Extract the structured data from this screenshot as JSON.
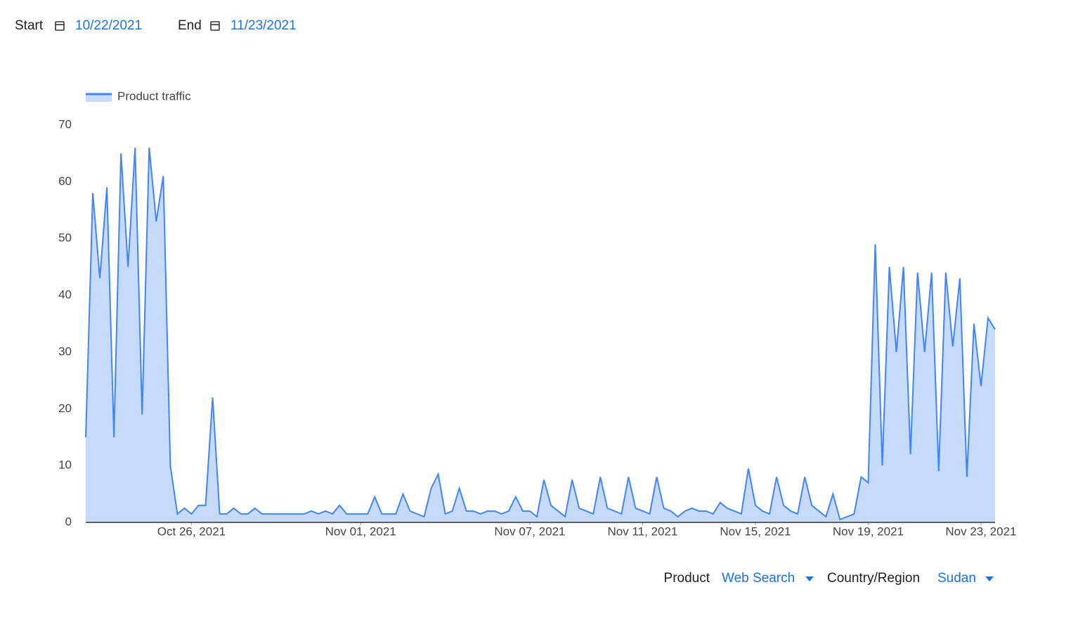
{
  "header": {
    "start_label": "Start",
    "start_date": "10/22/2021",
    "end_label": "End",
    "end_date": "11/23/2021"
  },
  "chart_data": {
    "type": "area",
    "color": "#4285f4",
    "fill": "#c6dafc",
    "series": [
      {
        "name": "Product traffic",
        "values": [
          15,
          58,
          43,
          59,
          15,
          65,
          45,
          66,
          19,
          66,
          53,
          61,
          10,
          1.5,
          2.5,
          1.5,
          3,
          3,
          22,
          1.5,
          1.5,
          2.5,
          1.5,
          1.5,
          2.5,
          1.5,
          1.5,
          1.5,
          1.5,
          1.5,
          1.5,
          1.5,
          2,
          1.5,
          2,
          1.5,
          3,
          1.5,
          1.5,
          1.5,
          1.5,
          4.5,
          1.5,
          1.5,
          1.5,
          5,
          2,
          1.5,
          1,
          6,
          8.5,
          1.5,
          2,
          6,
          2,
          2,
          1.5,
          2,
          2,
          1.5,
          2,
          4.5,
          2,
          2,
          1,
          7.5,
          3,
          2,
          1,
          7.5,
          2.5,
          2,
          1.5,
          8,
          2.5,
          2,
          1.5,
          8,
          2.5,
          2,
          1.5,
          8,
          2.5,
          2,
          1,
          2,
          2.5,
          2,
          2,
          1.5,
          3.5,
          2.5,
          2,
          1.5,
          9.5,
          3,
          2,
          1.5,
          8,
          3,
          2,
          1.5,
          8,
          3,
          2,
          1,
          5,
          0.5,
          1,
          1.5,
          8,
          7,
          49,
          10,
          45,
          30,
          45,
          12,
          44,
          30,
          44,
          9,
          44,
          31,
          43,
          8,
          35,
          24,
          36,
          34
        ]
      }
    ],
    "x": [
      "2021-10-22T06:00",
      "2021-10-22T12:00",
      "2021-10-22T18:00",
      "2021-10-23T00:00",
      "2021-10-23T06:00",
      "2021-10-23T12:00",
      "2021-10-23T18:00",
      "2021-10-24T00:00",
      "2021-10-24T06:00",
      "2021-10-24T12:00",
      "2021-10-24T18:00",
      "2021-10-25T00:00",
      "2021-10-25T06:00",
      "2021-10-25T12:00",
      "2021-10-25T18:00",
      "2021-10-26T00:00",
      "2021-10-26T06:00",
      "2021-10-26T12:00",
      "2021-10-26T18:00",
      "2021-10-27T00:00",
      "2021-10-27T06:00",
      "2021-10-27T12:00",
      "2021-10-27T18:00",
      "2021-10-28T00:00",
      "2021-10-28T06:00",
      "2021-10-28T12:00",
      "2021-10-28T18:00",
      "2021-10-29T00:00",
      "2021-10-29T06:00",
      "2021-10-29T12:00",
      "2021-10-29T18:00",
      "2021-10-30T00:00",
      "2021-10-30T06:00",
      "2021-10-30T12:00",
      "2021-10-30T18:00",
      "2021-10-31T00:00",
      "2021-10-31T06:00",
      "2021-10-31T12:00",
      "2021-10-31T18:00",
      "2021-11-01T00:00",
      "2021-11-01T06:00",
      "2021-11-01T12:00",
      "2021-11-01T18:00",
      "2021-11-02T00:00",
      "2021-11-02T06:00",
      "2021-11-02T12:00",
      "2021-11-02T18:00",
      "2021-11-03T00:00",
      "2021-11-03T06:00",
      "2021-11-03T12:00",
      "2021-11-03T18:00",
      "2021-11-04T00:00",
      "2021-11-04T06:00",
      "2021-11-04T12:00",
      "2021-11-04T18:00",
      "2021-11-05T00:00",
      "2021-11-05T06:00",
      "2021-11-05T12:00",
      "2021-11-05T18:00",
      "2021-11-06T00:00",
      "2021-11-06T06:00",
      "2021-11-06T12:00",
      "2021-11-06T18:00",
      "2021-11-07T00:00",
      "2021-11-07T06:00",
      "2021-11-07T12:00",
      "2021-11-07T18:00",
      "2021-11-08T00:00",
      "2021-11-08T06:00",
      "2021-11-08T12:00",
      "2021-11-08T18:00",
      "2021-11-09T00:00",
      "2021-11-09T06:00",
      "2021-11-09T12:00",
      "2021-11-09T18:00",
      "2021-11-10T00:00",
      "2021-11-10T06:00",
      "2021-11-10T12:00",
      "2021-11-10T18:00",
      "2021-11-11T00:00",
      "2021-11-11T06:00",
      "2021-11-11T12:00",
      "2021-11-11T18:00",
      "2021-11-12T00:00",
      "2021-11-12T06:00",
      "2021-11-12T12:00",
      "2021-11-12T18:00",
      "2021-11-13T00:00",
      "2021-11-13T06:00",
      "2021-11-13T12:00",
      "2021-11-13T18:00",
      "2021-11-14T00:00",
      "2021-11-14T06:00",
      "2021-11-14T12:00",
      "2021-11-14T18:00",
      "2021-11-15T00:00",
      "2021-11-15T06:00",
      "2021-11-15T12:00",
      "2021-11-15T18:00",
      "2021-11-16T00:00",
      "2021-11-16T06:00",
      "2021-11-16T12:00",
      "2021-11-16T18:00",
      "2021-11-17T00:00",
      "2021-11-17T06:00",
      "2021-11-17T12:00",
      "2021-11-17T18:00",
      "2021-11-18T00:00",
      "2021-11-18T06:00",
      "2021-11-18T12:00",
      "2021-11-18T18:00",
      "2021-11-19T00:00",
      "2021-11-19T06:00",
      "2021-11-19T12:00",
      "2021-11-19T18:00",
      "2021-11-20T00:00",
      "2021-11-20T06:00",
      "2021-11-20T12:00",
      "2021-11-20T18:00",
      "2021-11-21T00:00",
      "2021-11-21T06:00",
      "2021-11-21T12:00",
      "2021-11-21T18:00",
      "2021-11-22T00:00",
      "2021-11-22T06:00",
      "2021-11-22T12:00",
      "2021-11-22T18:00",
      "2021-11-23T00:00",
      "2021-11-23T06:00",
      "2021-11-23T12:00"
    ],
    "xlim": [
      "2021-10-22T06:00",
      "2021-11-23T12:00"
    ],
    "xticks": [
      {
        "value": "2021-10-26T00:00",
        "label": "Oct 26, 2021"
      },
      {
        "value": "2021-11-01T00:00",
        "label": "Nov 01, 2021"
      },
      {
        "value": "2021-11-07T00:00",
        "label": "Nov 07, 2021"
      },
      {
        "value": "2021-11-11T00:00",
        "label": "Nov 11, 2021"
      },
      {
        "value": "2021-11-15T00:00",
        "label": "Nov 15, 2021"
      },
      {
        "value": "2021-11-19T00:00",
        "label": "Nov 19, 2021"
      },
      {
        "value": "2021-11-23T00:00",
        "label": "Nov 23, 2021"
      }
    ],
    "ylim": [
      0,
      70
    ],
    "yticks": [
      0,
      10,
      20,
      30,
      40,
      50,
      60,
      70
    ],
    "legend": "top-left"
  },
  "controls": {
    "product_label": "Product",
    "product_value": "Web Search",
    "region_label": "Country/Region",
    "region_value": "Sudan"
  }
}
